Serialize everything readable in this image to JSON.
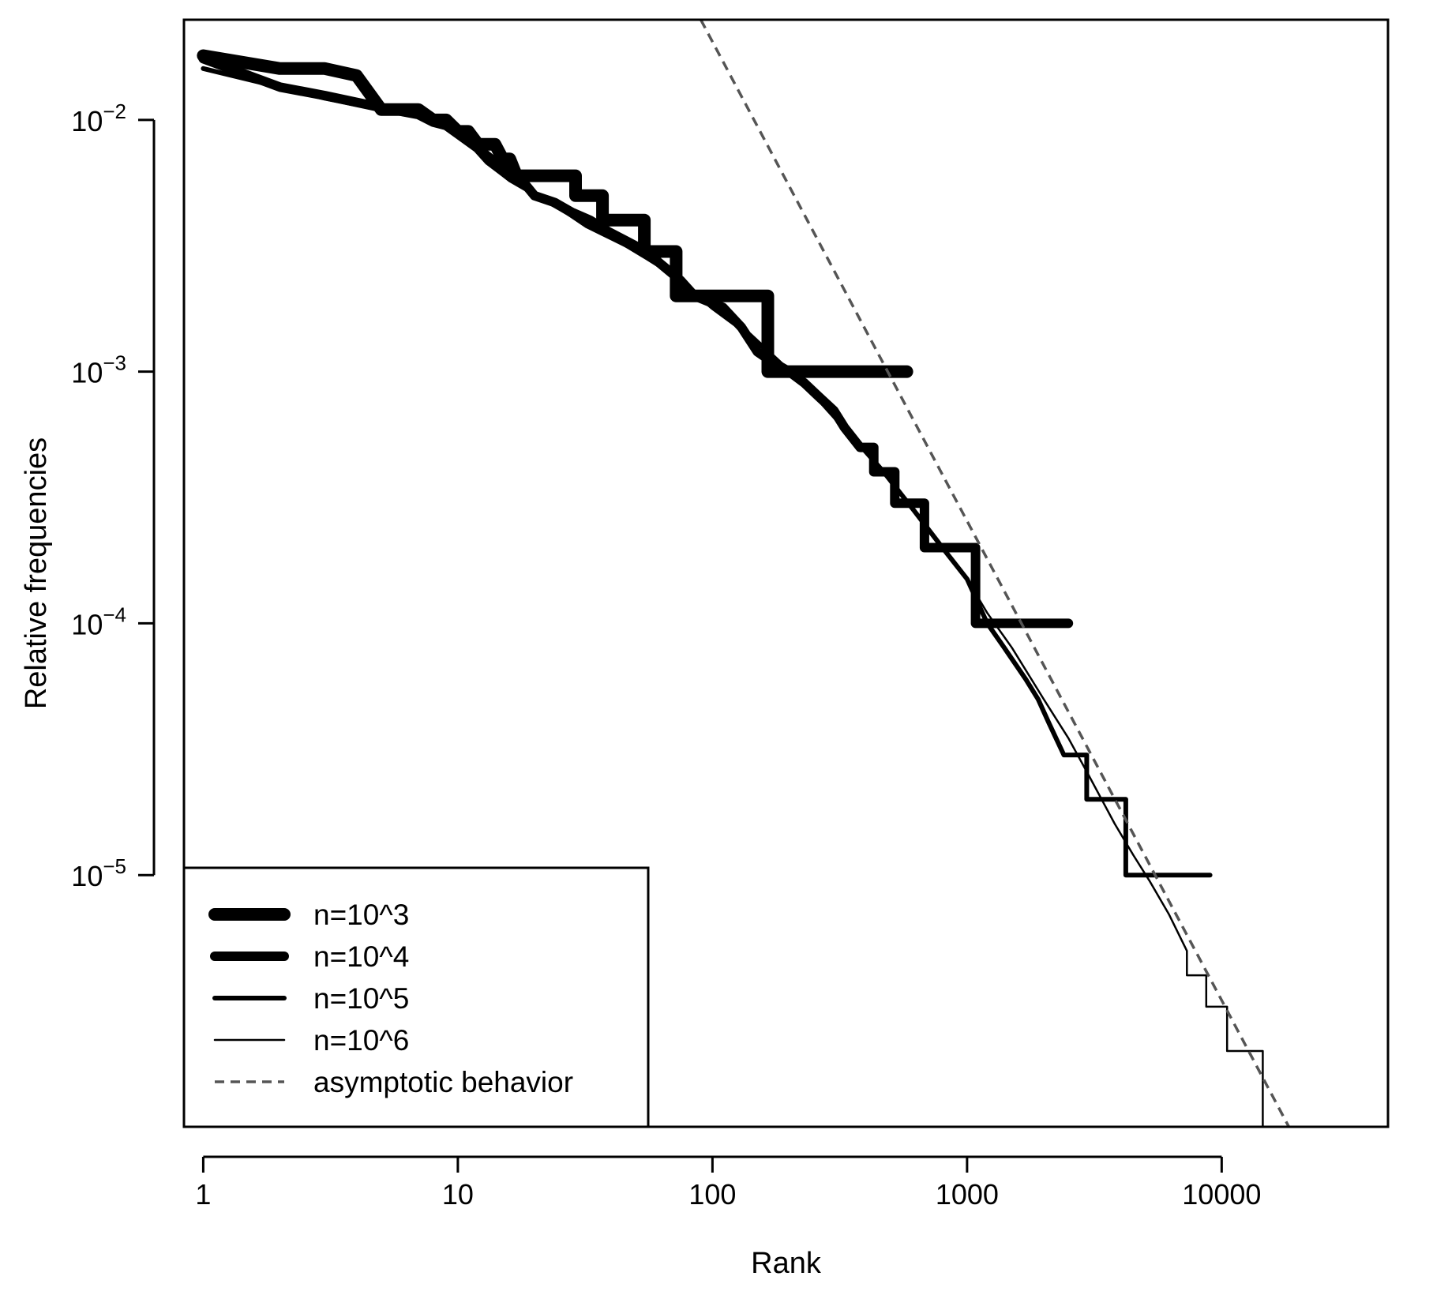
{
  "chart_data": {
    "type": "line",
    "title": "",
    "xlabel": "Rank",
    "ylabel": "Relative frequencies",
    "x_scale": "log",
    "y_scale": "log",
    "xlim": [
      0.84,
      45000
    ],
    "ylim": [
      1e-06,
      0.025
    ],
    "x_ticks": [
      {
        "value": 1,
        "label": "1"
      },
      {
        "value": 10,
        "label": "10"
      },
      {
        "value": 100,
        "label": "100"
      },
      {
        "value": 1000,
        "label": "1000"
      },
      {
        "value": 10000,
        "label": "10000"
      }
    ],
    "y_ticks": [
      {
        "value": 0.01,
        "base": "10",
        "exp": "−2"
      },
      {
        "value": 0.001,
        "base": "10",
        "exp": "−3"
      },
      {
        "value": 0.0001,
        "base": "10",
        "exp": "−4"
      },
      {
        "value": 1e-05,
        "base": "10",
        "exp": "−5"
      }
    ],
    "grid": false,
    "legend_position": "bottom-left",
    "colors": {
      "series": "#000000",
      "asymptote": "#555555"
    },
    "series": [
      {
        "name": "n=10^3",
        "line_width": 16,
        "dash": "",
        "points": [
          [
            1,
            0.018
          ],
          [
            2,
            0.016
          ],
          [
            3,
            0.016
          ],
          [
            4,
            0.015
          ],
          [
            5,
            0.011
          ],
          [
            7,
            0.011
          ],
          [
            8,
            0.01
          ],
          [
            9,
            0.01
          ],
          [
            10,
            0.009
          ],
          [
            11,
            0.009
          ],
          [
            12,
            0.008
          ],
          [
            14,
            0.008
          ],
          [
            15,
            0.007
          ],
          [
            16,
            0.007
          ],
          [
            17,
            0.006
          ],
          [
            29,
            0.006
          ],
          [
            29,
            0.005
          ],
          [
            37,
            0.005
          ],
          [
            37,
            0.004
          ],
          [
            54,
            0.004
          ],
          [
            54,
            0.003
          ],
          [
            72,
            0.003
          ],
          [
            72,
            0.002
          ],
          [
            165,
            0.002
          ],
          [
            165,
            0.001
          ],
          [
            580,
            0.001
          ]
        ]
      },
      {
        "name": "n=10^4",
        "line_width": 12,
        "dash": "",
        "points": [
          [
            1,
            0.0175
          ],
          [
            2,
            0.0135
          ],
          [
            3,
            0.0125
          ],
          [
            5,
            0.0112
          ],
          [
            7,
            0.0105
          ],
          [
            8,
            0.0098
          ],
          [
            9,
            0.0095
          ],
          [
            10,
            0.0088
          ],
          [
            12,
            0.0077
          ],
          [
            14,
            0.0068
          ],
          [
            18,
            0.0057
          ],
          [
            20,
            0.005
          ],
          [
            24,
            0.0047
          ],
          [
            28,
            0.0043
          ],
          [
            33,
            0.004
          ],
          [
            39,
            0.0036
          ],
          [
            46,
            0.0033
          ],
          [
            55,
            0.003
          ],
          [
            62,
            0.0027
          ],
          [
            75,
            0.0023
          ],
          [
            85,
            0.002
          ],
          [
            110,
            0.0018
          ],
          [
            130,
            0.0015
          ],
          [
            150,
            0.0012
          ],
          [
            170,
            0.0011
          ],
          [
            200,
            0.001
          ],
          [
            230,
            0.0009
          ],
          [
            260,
            0.0008
          ],
          [
            300,
            0.0007
          ],
          [
            330,
            0.0006
          ],
          [
            380,
            0.0005
          ],
          [
            430,
            0.0005
          ],
          [
            430,
            0.0004
          ],
          [
            520,
            0.0004
          ],
          [
            520,
            0.0003
          ],
          [
            680,
            0.0003
          ],
          [
            680,
            0.0002
          ],
          [
            1080,
            0.0002
          ],
          [
            1080,
            0.0001
          ],
          [
            2500,
            0.0001
          ]
        ]
      },
      {
        "name": "n=10^5",
        "line_width": 6,
        "dash": "",
        "points": [
          [
            1,
            0.016
          ],
          [
            2,
            0.0135
          ],
          [
            3,
            0.0122
          ],
          [
            5,
            0.011
          ],
          [
            7,
            0.0105
          ],
          [
            9,
            0.0095
          ],
          [
            11,
            0.0082
          ],
          [
            13,
            0.0068
          ],
          [
            16,
            0.0058
          ],
          [
            20,
            0.0051
          ],
          [
            25,
            0.0045
          ],
          [
            32,
            0.0038
          ],
          [
            40,
            0.0034
          ],
          [
            55,
            0.0029
          ],
          [
            75,
            0.0023
          ],
          [
            100,
            0.0018
          ],
          [
            140,
            0.0014
          ],
          [
            200,
            0.001
          ],
          [
            270,
            0.00075
          ],
          [
            350,
            0.00056
          ],
          [
            470,
            0.0004
          ],
          [
            620,
            0.00028
          ],
          [
            800,
            0.0002
          ],
          [
            1000,
            0.00015
          ],
          [
            1200,
            0.0001
          ],
          [
            1400,
            8e-05
          ],
          [
            1700,
            6e-05
          ],
          [
            1900,
            5e-05
          ],
          [
            2100,
            4e-05
          ],
          [
            2400,
            3e-05
          ],
          [
            2950,
            3e-05
          ],
          [
            2950,
            2e-05
          ],
          [
            4200,
            2e-05
          ],
          [
            4200,
            1e-05
          ],
          [
            9000,
            1e-05
          ]
        ]
      },
      {
        "name": "n=10^6",
        "line_width": 2.5,
        "dash": "",
        "points": [
          [
            1,
            0.016
          ],
          [
            2,
            0.0134
          ],
          [
            3,
            0.0121
          ],
          [
            5,
            0.0109
          ],
          [
            7,
            0.0104
          ],
          [
            9,
            0.0094
          ],
          [
            11,
            0.0081
          ],
          [
            13,
            0.0067
          ],
          [
            16,
            0.0057
          ],
          [
            20,
            0.005
          ],
          [
            25,
            0.0044
          ],
          [
            32,
            0.0038
          ],
          [
            40,
            0.0034
          ],
          [
            55,
            0.0028
          ],
          [
            75,
            0.0023
          ],
          [
            100,
            0.0018
          ],
          [
            140,
            0.0014
          ],
          [
            200,
            0.001
          ],
          [
            270,
            0.00075
          ],
          [
            350,
            0.00056
          ],
          [
            470,
            0.0004
          ],
          [
            620,
            0.00028
          ],
          [
            800,
            0.0002
          ],
          [
            1000,
            0.00015
          ],
          [
            1200,
            0.00011
          ],
          [
            1500,
            8e-05
          ],
          [
            2000,
            5e-05
          ],
          [
            2500,
            3.5e-05
          ],
          [
            3000,
            2.5e-05
          ],
          [
            3800,
            1.6e-05
          ],
          [
            4500,
            1.2e-05
          ],
          [
            5200,
            9.5e-06
          ],
          [
            6200,
            7e-06
          ],
          [
            7300,
            5e-06
          ],
          [
            7300,
            4e-06
          ],
          [
            8700,
            4e-06
          ],
          [
            8700,
            3e-06
          ],
          [
            10500,
            3e-06
          ],
          [
            10500,
            2e-06
          ],
          [
            14500,
            2e-06
          ],
          [
            14500,
            1e-06
          ],
          [
            30000,
            1e-06
          ]
        ]
      },
      {
        "name": "asymptotic behavior",
        "line_width": 3.5,
        "dash": "12 8",
        "points": [
          [
            90,
            0.025
          ],
          [
            20000,
            8.5e-07
          ]
        ]
      }
    ]
  }
}
